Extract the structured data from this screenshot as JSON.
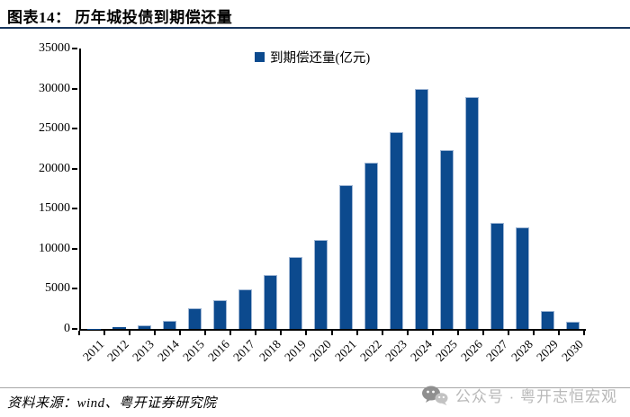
{
  "header": {
    "title": "图表14： 历年城投债到期偿还量"
  },
  "chart_data": {
    "type": "bar",
    "title": "历年城投债到期偿还量",
    "legend": "到期偿还量(亿元)",
    "legend_position": "top",
    "grid": false,
    "categories": [
      "2011",
      "2012",
      "2013",
      "2014",
      "2015",
      "2016",
      "2017",
      "2018",
      "2019",
      "2020",
      "2021",
      "2022",
      "2023",
      "2024",
      "2025",
      "2026",
      "2027",
      "2028",
      "2029",
      "2030"
    ],
    "values": [
      20,
      200,
      500,
      1000,
      2550,
      3600,
      4900,
      6700,
      9000,
      11100,
      18000,
      20700,
      24600,
      30000,
      22300,
      29000,
      13200,
      12700,
      2300,
      900
    ],
    "ylabel": "",
    "xlabel": "",
    "ylim": [
      0,
      35000
    ],
    "ytick_step": 5000,
    "bar_color": "#0C4A8E",
    "bar_edge_color": "#9FB6D4",
    "axis_color": "#000000"
  },
  "footer": {
    "source": "资料来源：wind、粤开证券研究院",
    "watermark": "公众号 · 粤开志恒宏观"
  },
  "icons": {
    "watermark_icon": "wechat-logo"
  }
}
